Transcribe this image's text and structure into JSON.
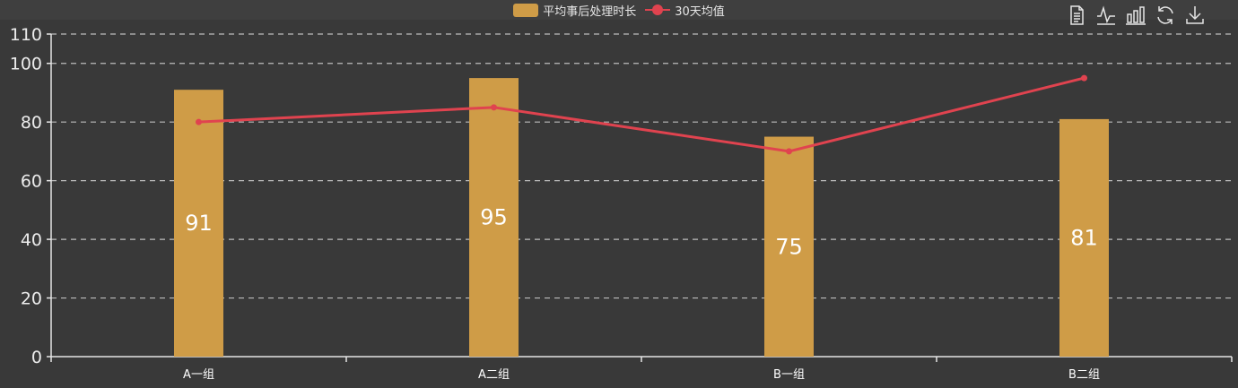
{
  "chart_data": {
    "type": "bar",
    "categories": [
      "A一组",
      "A二组",
      "B一组",
      "B二组"
    ],
    "series": [
      {
        "name": "平均事后处理时长",
        "kind": "bar",
        "color": "#cf9c47",
        "values": [
          91,
          95,
          75,
          81
        ]
      },
      {
        "name": "30天均值",
        "kind": "line",
        "color": "#e0434f",
        "values": [
          80,
          85,
          70,
          95
        ]
      }
    ],
    "ylim": [
      0,
      110
    ],
    "yticks": [
      0,
      20,
      40,
      60,
      80,
      100,
      110
    ],
    "grid": true,
    "legend_position": "top-center",
    "xlabel": "",
    "ylabel": ""
  },
  "toolbox": {
    "items": [
      {
        "name": "data-view-icon"
      },
      {
        "name": "line-chart-icon"
      },
      {
        "name": "bar-chart-icon"
      },
      {
        "name": "restore-icon"
      },
      {
        "name": "download-icon"
      }
    ],
    "color": "#e6e6e6"
  },
  "colors": {
    "background": "#393939",
    "axis": "#e6e6e6",
    "grid": "#bdbdbd"
  }
}
